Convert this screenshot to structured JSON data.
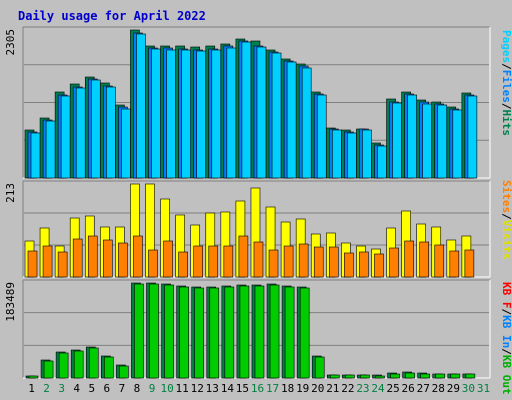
{
  "title": "Daily usage for April 2022",
  "colors": {
    "title": "#0000cc",
    "background": "#c0c0c0",
    "frame": "#ffffff",
    "grid": "#808080",
    "hits": "#00804f",
    "files": "#0080ff",
    "pages": "#00d0ff",
    "visits": "#ffff00",
    "sites": "#ff8000",
    "kbin": "#008040",
    "kbout": "#00cc00",
    "kbf": "#ff0000",
    "day_weekday": "#000000",
    "day_weekend": "#008040"
  },
  "legend": {
    "top": [
      {
        "text": "Hits",
        "color": "#00804f"
      },
      {
        "text": "/",
        "color": "#000000"
      },
      {
        "text": "Files",
        "color": "#0080ff"
      },
      {
        "text": "/",
        "color": "#000000"
      },
      {
        "text": "Pages",
        "color": "#00d0ff"
      }
    ],
    "middle": [
      {
        "text": "Visits",
        "color": "#e0e000"
      },
      {
        "text": "/",
        "color": "#000000"
      },
      {
        "text": "Sites",
        "color": "#ff8000"
      }
    ],
    "bottom": [
      {
        "text": "KB Out",
        "color": "#00b000"
      },
      {
        "text": "/",
        "color": "#000000"
      },
      {
        "text": "KB In",
        "color": "#0080ff"
      },
      {
        "text": "/",
        "color": "#000000"
      },
      {
        "text": "KB F",
        "color": "#ff0000"
      }
    ]
  },
  "chart_data": [
    {
      "type": "bar",
      "panel": "hits-files-pages",
      "ymax_label": "2305",
      "ylim": [
        0,
        2305
      ],
      "categories": [
        "1",
        "2",
        "3",
        "4",
        "5",
        "6",
        "7",
        "8",
        "9",
        "10",
        "11",
        "12",
        "13",
        "14",
        "15",
        "16",
        "17",
        "18",
        "19",
        "20",
        "21",
        "22",
        "23",
        "24",
        "25",
        "26",
        "27",
        "28",
        "29",
        "30",
        "31"
      ],
      "series": [
        {
          "name": "Hits",
          "color": "#00804f",
          "values": [
            740,
            940,
            1340,
            1460,
            1570,
            1480,
            1140,
            2305,
            2060,
            2060,
            2060,
            2040,
            2050,
            2080,
            2170,
            2130,
            2000,
            1860,
            1780,
            1340,
            780,
            740,
            770,
            540,
            1230,
            1340,
            1220,
            1180,
            1110,
            1320,
            0
          ]
        },
        {
          "name": "Files",
          "color": "#0080ff",
          "values": [
            720,
            900,
            1300,
            1420,
            1540,
            1440,
            1100,
            2260,
            2030,
            2020,
            2010,
            2000,
            2010,
            2050,
            2140,
            2060,
            1960,
            1820,
            1740,
            1310,
            760,
            720,
            760,
            520,
            1190,
            1310,
            1180,
            1150,
            1080,
            1300,
            0
          ]
        },
        {
          "name": "Pages",
          "color": "#00d0ff",
          "values": [
            700,
            880,
            1280,
            1400,
            1520,
            1420,
            1080,
            2240,
            2010,
            2000,
            1990,
            1980,
            1990,
            2030,
            2120,
            2040,
            1940,
            1800,
            1720,
            1290,
            740,
            700,
            740,
            500,
            1170,
            1290,
            1160,
            1130,
            1060,
            1280,
            0
          ]
        }
      ]
    },
    {
      "type": "bar",
      "panel": "visits-sites",
      "ymax_label": "213",
      "ylim": [
        0,
        213
      ],
      "categories": [
        "1",
        "2",
        "3",
        "4",
        "5",
        "6",
        "7",
        "8",
        "9",
        "10",
        "11",
        "12",
        "13",
        "14",
        "15",
        "16",
        "17",
        "18",
        "19",
        "20",
        "21",
        "22",
        "23",
        "24",
        "25",
        "26",
        "27",
        "28",
        "29",
        "30",
        "31"
      ],
      "series": [
        {
          "name": "Visits",
          "color": "#ffff00",
          "values": [
            82,
            112,
            72,
            135,
            140,
            114,
            115,
            213,
            213,
            178,
            142,
            120,
            146,
            150,
            175,
            204,
            160,
            127,
            132,
            98,
            100,
            79,
            71,
            65,
            112,
            151,
            122,
            115,
            85,
            95,
            0
          ]
        },
        {
          "name": "Sites",
          "color": "#ff8000",
          "values": [
            60,
            72,
            58,
            88,
            95,
            84,
            78,
            95,
            62,
            83,
            58,
            72,
            71,
            72,
            93,
            80,
            61,
            72,
            75,
            68,
            68,
            54,
            58,
            52,
            66,
            82,
            80,
            73,
            60,
            62,
            0
          ]
        }
      ]
    },
    {
      "type": "bar",
      "panel": "kbytes",
      "ymax_label": "183489",
      "ylim": [
        0,
        183489
      ],
      "categories": [
        "1",
        "2",
        "3",
        "4",
        "5",
        "6",
        "7",
        "8",
        "9",
        "10",
        "11",
        "12",
        "13",
        "14",
        "15",
        "16",
        "17",
        "18",
        "19",
        "20",
        "21",
        "22",
        "23",
        "24",
        "25",
        "26",
        "27",
        "28",
        "29",
        "30",
        "31"
      ],
      "series": [
        {
          "name": "KB F",
          "color": "#ff0000",
          "values": [
            0,
            0,
            0,
            0,
            0,
            0,
            0,
            0,
            0,
            0,
            0,
            0,
            0,
            0,
            0,
            0,
            0,
            0,
            0,
            0,
            0,
            0,
            0,
            0,
            0,
            0,
            0,
            0,
            0,
            0,
            0
          ]
        },
        {
          "name": "KB In",
          "color": "#008040",
          "values": [
            4000,
            34000,
            50000,
            54000,
            59000,
            42000,
            26000,
            183489,
            183489,
            182000,
            178000,
            176000,
            176000,
            178000,
            179000,
            180000,
            182000,
            178000,
            176000,
            43000,
            6000,
            6000,
            6000,
            5000,
            9000,
            11000,
            9000,
            8000,
            8000,
            8000,
            0
          ]
        },
        {
          "name": "KB Out",
          "color": "#00cc00",
          "values": [
            3000,
            32000,
            48000,
            52000,
            57000,
            40000,
            24000,
            181000,
            181000,
            180000,
            176000,
            174000,
            174000,
            176000,
            177000,
            178000,
            180000,
            176000,
            174000,
            41000,
            5000,
            5000,
            5000,
            4000,
            8000,
            10000,
            8000,
            7000,
            7000,
            7000,
            0
          ]
        }
      ]
    }
  ]
}
